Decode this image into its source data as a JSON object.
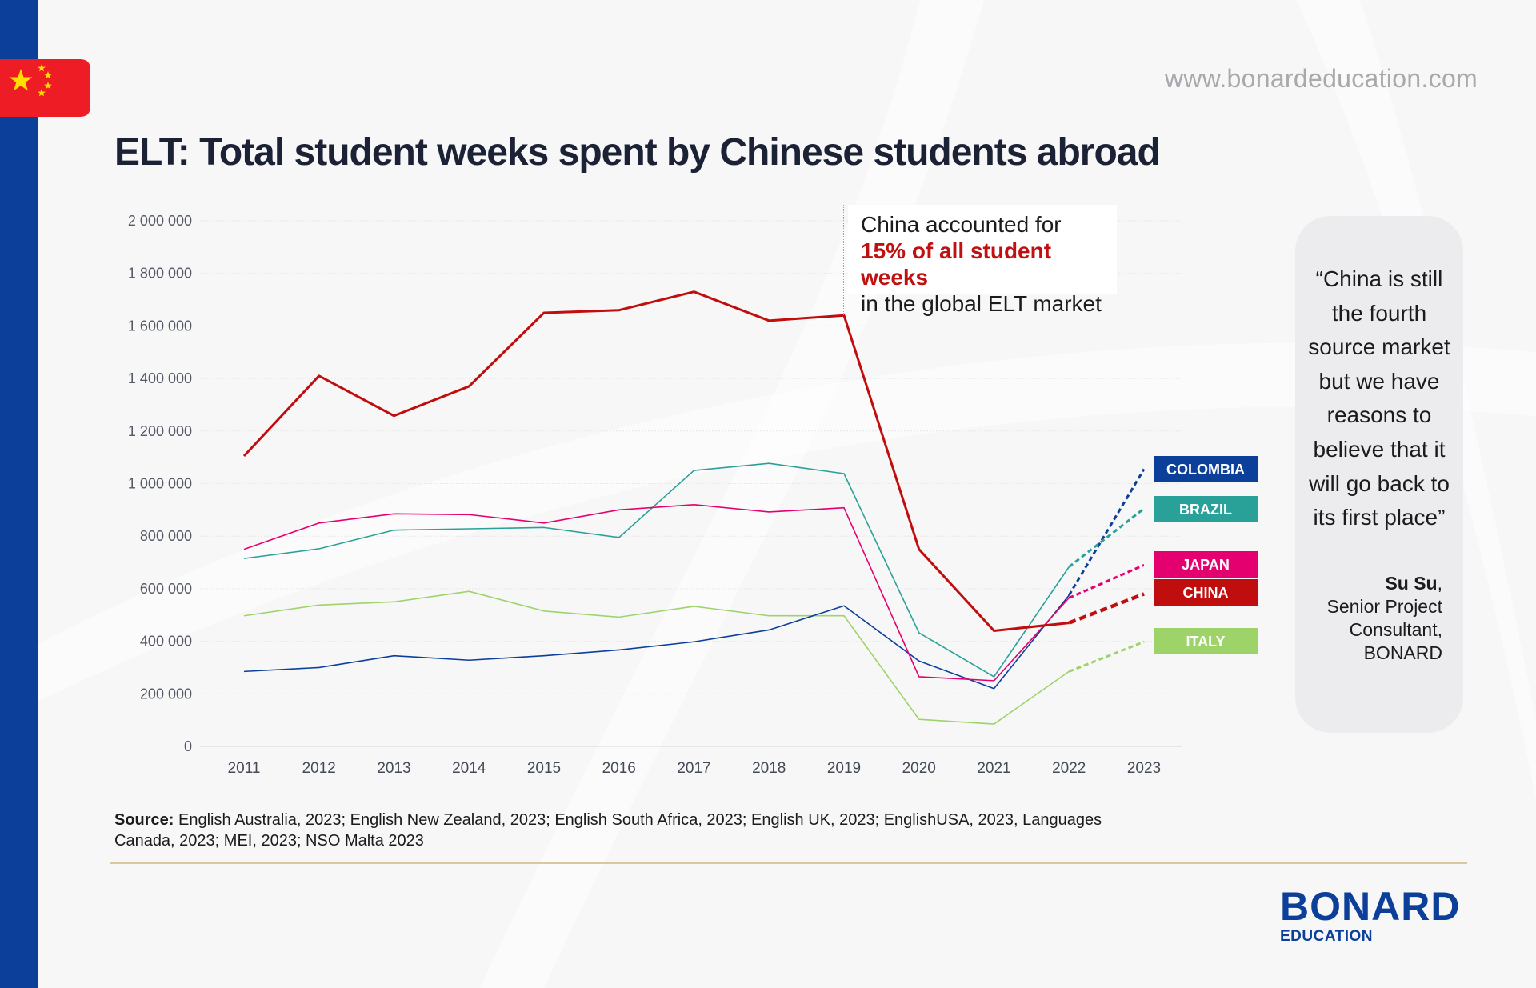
{
  "website": "www.bonardeducation.com",
  "title": "ELT: Total student weeks spent by Chinese students abroad",
  "callout": {
    "line1": "China accounted for",
    "highlight": "15% of all student weeks",
    "line3": "in the global ELT market"
  },
  "quote": {
    "text": "“China is still the fourth source market but we have reasons to believe that it will go back to its first place”",
    "author_name": "Su Su",
    "author_role": "Senior Project Consultant, BONARD"
  },
  "source": {
    "label": "Source:",
    "text": "English Australia, 2023; English New Zealand, 2023; English South Africa, 2023; English UK, 2023; EnglishUSA, 2023, Languages Canada, 2023; MEI, 2023; NSO Malta 2023"
  },
  "logo": {
    "main": "BONARD",
    "sub": "EDUCATION"
  },
  "colors": {
    "left_bar": "#0b3f99",
    "flag_red": "#ee1c25",
    "flag_star": "#ffde00",
    "china": "#c00d0d",
    "brazil": "#2aa198",
    "japan": "#e4006f",
    "colombia": "#0b3f99",
    "italy": "#9ed36a"
  },
  "chart_data": {
    "type": "line",
    "x": [
      2011,
      2012,
      2013,
      2014,
      2015,
      2016,
      2017,
      2018,
      2019,
      2020,
      2021,
      2022,
      2023
    ],
    "ylim": [
      0,
      2000000
    ],
    "yticks": [
      0,
      200000,
      400000,
      600000,
      800000,
      1000000,
      1200000,
      1400000,
      1600000,
      1800000,
      2000000
    ],
    "ytick_labels": [
      "0",
      "200 000",
      "400 000",
      "600 000",
      "800 000",
      "1 000 000",
      "1 200 000",
      "1 400 000",
      "1 600 000",
      "1 800 000",
      "2 000 000"
    ],
    "grid": true,
    "projected_segment": "2022-2023 dashed",
    "series": [
      {
        "name": "COLOMBIA",
        "color": "#0b3f99",
        "values": [
          285000,
          300000,
          345000,
          328000,
          345000,
          367000,
          398000,
          443000,
          535000,
          325000,
          220000,
          575000,
          1055000
        ]
      },
      {
        "name": "BRAZIL",
        "color": "#2aa198",
        "values": [
          715000,
          752000,
          823000,
          828000,
          833000,
          795000,
          1050000,
          1077000,
          1038000,
          432000,
          265000,
          683000,
          905000
        ]
      },
      {
        "name": "JAPAN",
        "color": "#e4006f",
        "values": [
          750000,
          850000,
          885000,
          882000,
          850000,
          900000,
          920000,
          892000,
          908000,
          265000,
          250000,
          565000,
          690000
        ]
      },
      {
        "name": "CHINA",
        "color": "#c00d0d",
        "values": [
          1105000,
          1410000,
          1258000,
          1370000,
          1650000,
          1660000,
          1730000,
          1620000,
          1640000,
          750000,
          440000,
          470000,
          580000
        ]
      },
      {
        "name": "ITALY",
        "color": "#9ed36a",
        "values": [
          497000,
          538000,
          550000,
          590000,
          515000,
          492000,
          533000,
          497000,
          497000,
          103000,
          85000,
          285000,
          398000
        ]
      }
    ]
  }
}
